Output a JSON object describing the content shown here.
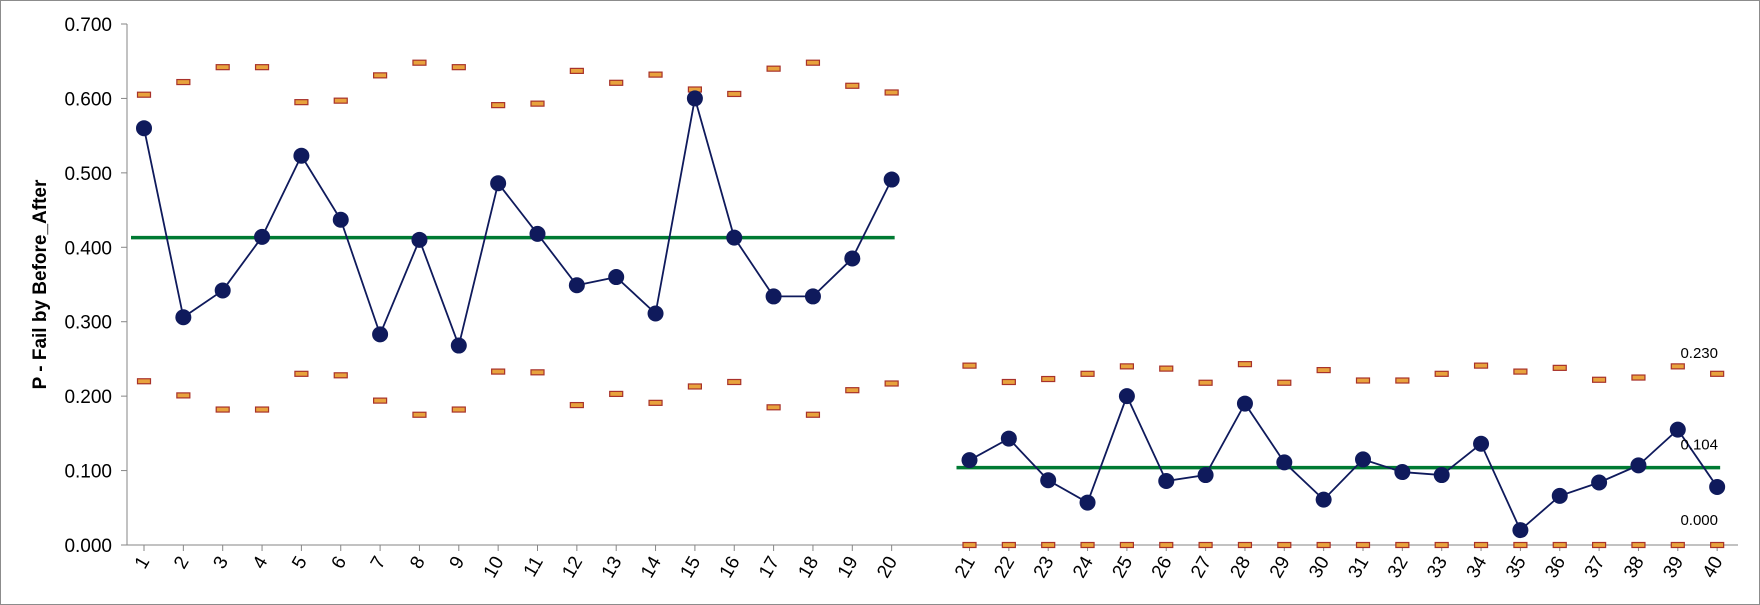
{
  "chart_data": {
    "type": "line",
    "title": "",
    "ylabel": "P - Fail by Before_After",
    "xlabel": "",
    "ylim": [
      0,
      0.7
    ],
    "yticks": [
      "0.000",
      "0.100",
      "0.200",
      "0.300",
      "0.400",
      "0.500",
      "0.600",
      "0.700"
    ],
    "grid": false,
    "annotations": [
      "0.230",
      "0.104",
      "0.000"
    ],
    "colors": {
      "points": "#0f1a5c",
      "center_line": "#007a33",
      "limit_fill": "#e8a33d",
      "limit_stroke": "#a8322a"
    },
    "phases": [
      {
        "x": [
          1,
          2,
          3,
          4,
          5,
          6,
          7,
          8,
          9,
          10,
          11,
          12,
          13,
          14,
          15,
          16,
          17,
          18,
          19,
          20
        ],
        "p": [
          0.56,
          0.306,
          0.342,
          0.414,
          0.523,
          0.437,
          0.283,
          0.41,
          0.268,
          0.486,
          0.418,
          0.349,
          0.36,
          0.311,
          0.6,
          0.413,
          0.334,
          0.334,
          0.385,
          0.491
        ],
        "center": 0.413,
        "ucl": [
          0.605,
          0.622,
          0.642,
          0.642,
          0.595,
          0.597,
          0.631,
          0.648,
          0.642,
          0.591,
          0.593,
          0.637,
          0.621,
          0.632,
          0.612,
          0.606,
          0.64,
          0.648,
          0.617,
          0.608
        ],
        "lcl": [
          0.22,
          0.201,
          0.182,
          0.182,
          0.23,
          0.228,
          0.194,
          0.175,
          0.182,
          0.233,
          0.232,
          0.188,
          0.203,
          0.191,
          0.213,
          0.219,
          0.185,
          0.175,
          0.208,
          0.217
        ]
      },
      {
        "x": [
          21,
          22,
          23,
          24,
          25,
          26,
          27,
          28,
          29,
          30,
          31,
          32,
          33,
          34,
          35,
          36,
          37,
          38,
          39,
          40
        ],
        "p": [
          0.114,
          0.143,
          0.087,
          0.057,
          0.2,
          0.086,
          0.094,
          0.19,
          0.111,
          0.061,
          0.115,
          0.098,
          0.094,
          0.136,
          0.02,
          0.066,
          0.084,
          0.107,
          0.155,
          0.078
        ],
        "center": 0.104,
        "ucl": [
          0.241,
          0.219,
          0.223,
          0.23,
          0.24,
          0.237,
          0.218,
          0.243,
          0.218,
          0.235,
          0.221,
          0.221,
          0.23,
          0.241,
          0.233,
          0.238,
          0.222,
          0.225,
          0.24,
          0.23
        ],
        "lcl": [
          0.0,
          0.0,
          0.0,
          0.0,
          0.0,
          0.0,
          0.0,
          0.0,
          0.0,
          0.0,
          0.0,
          0.0,
          0.0,
          0.0,
          0.0,
          0.0,
          0.0,
          0.0,
          0.0,
          0.0
        ]
      }
    ]
  }
}
